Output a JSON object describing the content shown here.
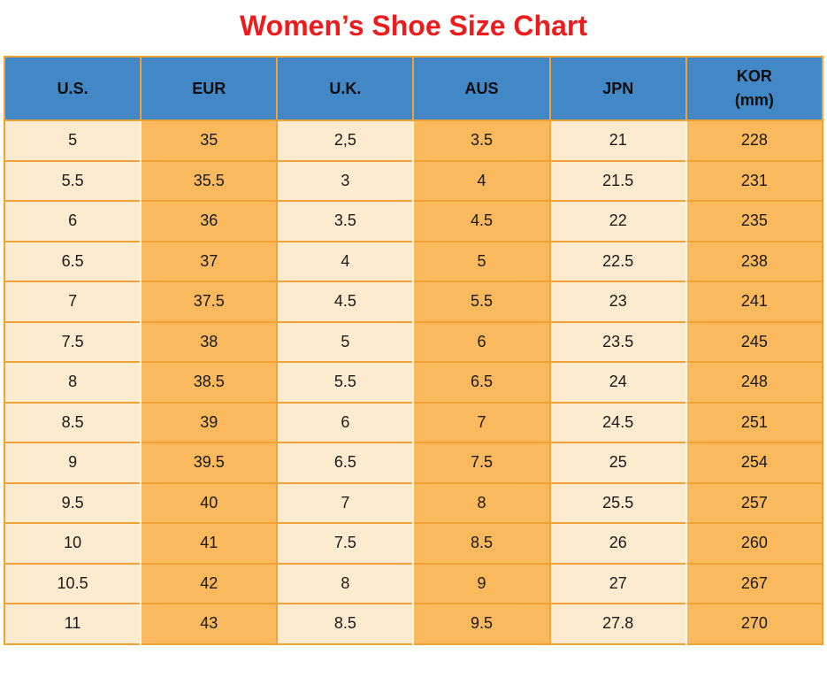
{
  "title": "Women’s Shoe Size Chart",
  "colors": {
    "title_red": "#ED1C1C",
    "header_blue": "#4288C6",
    "cell_cream": "#FCEBCE",
    "cell_orange": "#FBB95D",
    "border_orange": "#F0A239",
    "vline_pale": "#FDF4E1",
    "vline_orange": "#F0A23B",
    "text_dark": "#1A1A1A"
  },
  "chart_data": {
    "type": "table",
    "title": "Women’s Shoe Size Chart",
    "legend_position": "none",
    "grid": "on",
    "headers": [
      {
        "label": "U.S.",
        "sublabel": ""
      },
      {
        "label": "EUR",
        "sublabel": ""
      },
      {
        "label": "U.K.",
        "sublabel": ""
      },
      {
        "label": "AUS",
        "sublabel": ""
      },
      {
        "label": "JPN",
        "sublabel": ""
      },
      {
        "label": "KOR",
        "sublabel": "(mm)"
      }
    ],
    "rows": [
      [
        "5",
        "35",
        "2,5",
        "3.5",
        "21",
        "228"
      ],
      [
        "5.5",
        "35.5",
        "3",
        "4",
        "21.5",
        "231"
      ],
      [
        "6",
        "36",
        "3.5",
        "4.5",
        "22",
        "235"
      ],
      [
        "6.5",
        "37",
        "4",
        "5",
        "22.5",
        "238"
      ],
      [
        "7",
        "37.5",
        "4.5",
        "5.5",
        "23",
        "241"
      ],
      [
        "7.5",
        "38",
        "5",
        "6",
        "23.5",
        "245"
      ],
      [
        "8",
        "38.5",
        "5.5",
        "6.5",
        "24",
        "248"
      ],
      [
        "8.5",
        "39",
        "6",
        "7",
        "24.5",
        "251"
      ],
      [
        "9",
        "39.5",
        "6.5",
        "7.5",
        "25",
        "254"
      ],
      [
        "9.5",
        "40",
        "7",
        "8",
        "25.5",
        "257"
      ],
      [
        "10",
        "41",
        "7.5",
        "8.5",
        "26",
        "260"
      ],
      [
        "10.5",
        "42",
        "8",
        "9",
        "27",
        "267"
      ],
      [
        "11",
        "43",
        "8.5",
        "9.5",
        "27.8",
        "270"
      ]
    ]
  }
}
